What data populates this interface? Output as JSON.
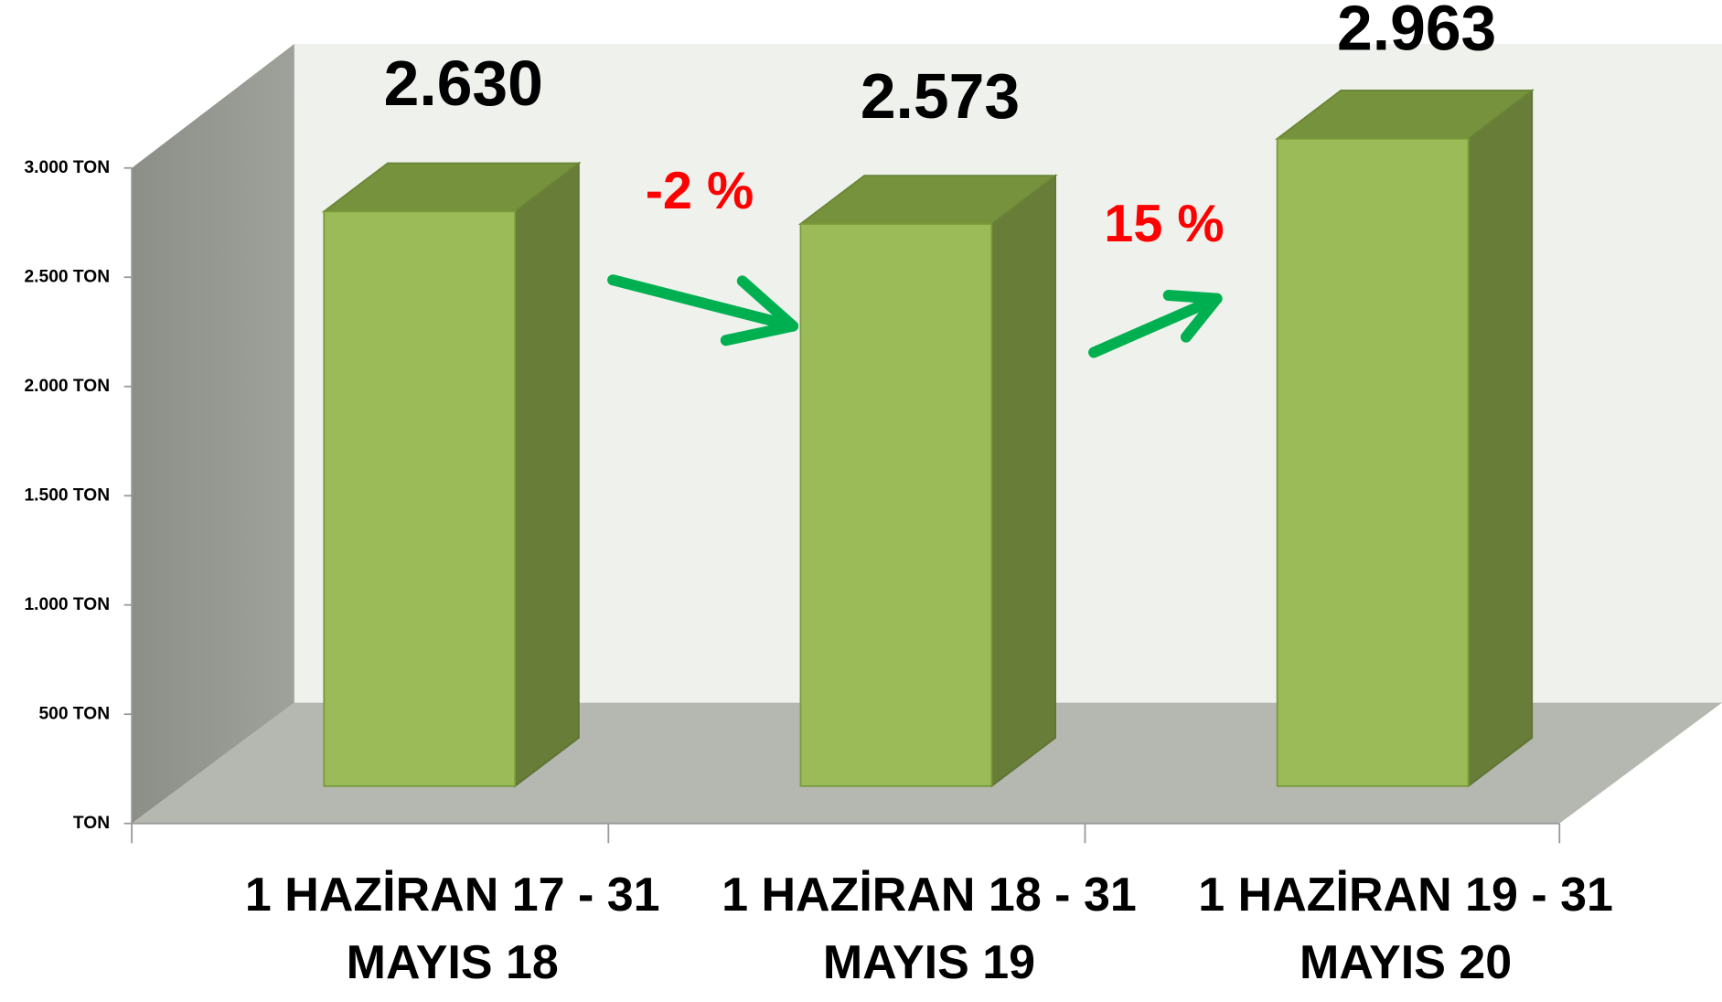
{
  "chart_data": {
    "type": "bar3d",
    "categories": [
      "1 HAZİRAN 17 - 31 MAYIS 18",
      "1 HAZİRAN 18 - 31 MAYIS 19",
      "1 HAZİRAN 19 - 31 MAYIS 20"
    ],
    "values": [
      2630,
      2573,
      2963
    ],
    "value_labels": [
      "2.630",
      "2.573",
      "2.963"
    ],
    "color": "#9bbb59",
    "ylim": [
      0,
      3000
    ],
    "yticks": [
      {
        "value": 0,
        "label": "TON"
      },
      {
        "value": 500,
        "label": "500 TON"
      },
      {
        "value": 1000,
        "label": "1.000 TON"
      },
      {
        "value": 1500,
        "label": "1.500 TON"
      },
      {
        "value": 2000,
        "label": "2.000 TON"
      },
      {
        "value": 2500,
        "label": "2.500 TON"
      },
      {
        "value": 3000,
        "label": "3.000 TON"
      }
    ],
    "annotations": [
      "-2 %",
      "15 %"
    ]
  }
}
